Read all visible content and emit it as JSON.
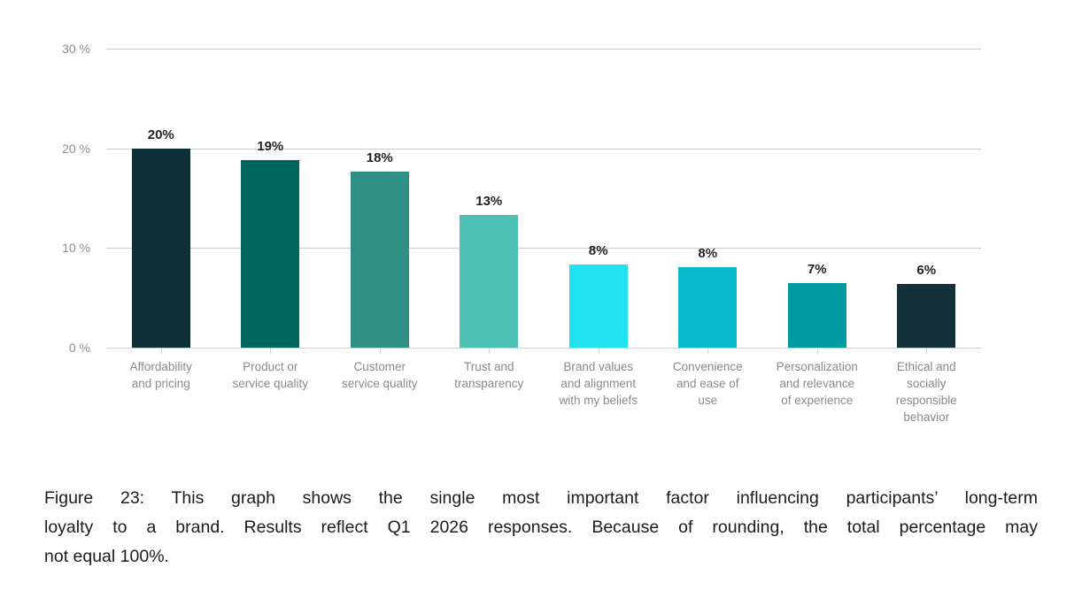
{
  "chart_data": {
    "type": "bar",
    "categories": [
      "Affordability and pricing",
      "Product or service quality",
      "Customer service quality",
      "Trust and transparency",
      "Brand values and alignment with my beliefs",
      "Convenience and ease of use",
      "Personalization and relevance of experience",
      "Ethical and socially responsible behavior"
    ],
    "values": [
      20,
      19,
      18,
      13,
      8,
      8,
      7,
      6
    ],
    "value_labels": [
      "20%",
      "19%",
      "18%",
      "13%",
      "8%",
      "8%",
      "7%",
      "6%"
    ],
    "category_label_lines": [
      [
        "Affordability",
        "and pricing"
      ],
      [
        "Product or",
        "service quality"
      ],
      [
        "Customer",
        "service quality"
      ],
      [
        "Trust and",
        "transparency"
      ],
      [
        "Brand values",
        "and alignment",
        "with my beliefs"
      ],
      [
        "Convenience",
        "and ease of",
        "use"
      ],
      [
        "Personalization",
        "and relevance",
        "of experience"
      ],
      [
        "Ethical and",
        "socially",
        "responsible",
        "behavior"
      ]
    ],
    "bar_colors": [
      "#0d2f36",
      "#00655c",
      "#2f8f85",
      "#4cc0b2",
      "#21e2ee",
      "#0ab8cc",
      "#009aa2",
      "#123138"
    ],
    "bar_render_heights_pct": [
      20.0,
      18.8,
      17.7,
      13.3,
      8.3,
      8.1,
      6.5,
      6.4
    ],
    "y_ticks": [
      "30 %",
      "20 %",
      "10 %",
      "0 %"
    ],
    "y_tick_values": [
      30,
      20,
      10,
      0
    ],
    "ylim": [
      0,
      30
    ],
    "grid": true,
    "legend": false
  },
  "caption": {
    "text": "Figure 23: This graph shows the single most important factor influencing participants’ long-term loyalty to a brand. Results reflect Q1 2026 responses. Because of rounding, the total percentage may not equal 100%.",
    "lines": [
      "Figure 23: This graph shows the single most important factor influencing participants’ long-term",
      "loyalty to a brand. Results reflect Q1 2026 responses. Because of rounding, the total percentage may",
      "not equal 100%."
    ]
  },
  "colors": {
    "background": "#ffffff",
    "gridline": "#cccbca",
    "axis_line": "#c6d4dd",
    "y_tick_label": "#8d8d8d",
    "category_label": "#878b8e",
    "value_label": "#1d2125",
    "caption_text": "#1b1b1b"
  }
}
